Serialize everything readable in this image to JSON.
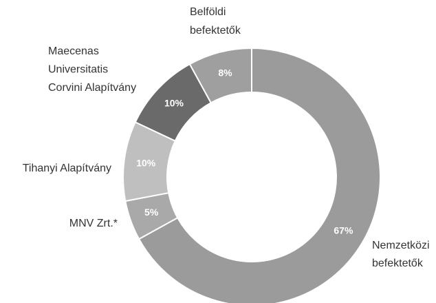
{
  "chart_data": {
    "type": "donut",
    "categories": [
      [
        "Nemzetközi",
        "befektetők"
      ],
      [
        "MNV Zrt.*"
      ],
      [
        "Tihanyi Alapítvány"
      ],
      [
        "Maecenas",
        "Universitatis",
        "Corvini Alapítvány"
      ],
      [
        "Belföldi",
        "befektetők"
      ]
    ],
    "values": [
      67,
      5,
      10,
      10,
      8
    ],
    "value_labels": [
      "67%",
      "5%",
      "10%",
      "10%",
      "8%"
    ],
    "colors": [
      "#9b9b9b",
      "#a9a9a9",
      "#bfbfbf",
      "#6a6a6a",
      "#9f9f9f"
    ]
  }
}
